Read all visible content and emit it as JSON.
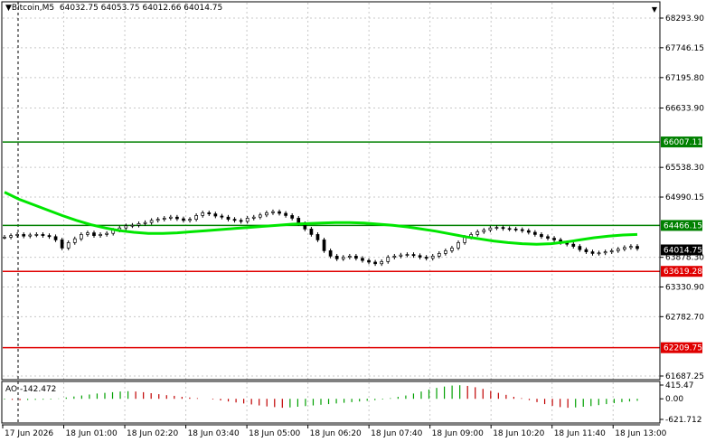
{
  "header": {
    "symbol_label": "▼Bitcoin,M5",
    "ohlc": "64032.75 64053.75 64012.66 64014.75",
    "scroll_icon": "triangle-down-icon"
  },
  "indicator": {
    "name": "AO -142.472"
  },
  "colors": {
    "bull": "#000000",
    "bear": "#000000",
    "ma": "#00e600",
    "resistance": "#008000",
    "support": "#e00000",
    "ao_up": "#00a000",
    "ao_down": "#c00000",
    "grid": "#c8c8c8"
  },
  "chart_data": {
    "type": "candlestick",
    "y_ticks": [
      "68293.90",
      "67746.15",
      "67195.80",
      "66633.90",
      "65538.30",
      "64990.15",
      "63878.30",
      "63330.90",
      "62782.70",
      "61687.25"
    ],
    "ylim": [
      61687.25,
      68293.9
    ],
    "current_price": "64014.75",
    "levels": [
      {
        "label": "66007.11",
        "value": 66007.11,
        "kind": "resistance"
      },
      {
        "label": "64466.15",
        "value": 64466.15,
        "kind": "resistance"
      },
      {
        "label": "63619.28",
        "value": 63619.28,
        "kind": "support"
      },
      {
        "label": "62209.75",
        "value": 62209.75,
        "kind": "support"
      }
    ],
    "x_ticks": [
      "17 Jun 2026",
      "18 Jun 01:00",
      "18 Jun 02:20",
      "18 Jun 03:40",
      "18 Jun 05:00",
      "18 Jun 06:20",
      "18 Jun 07:40",
      "18 Jun 09:00",
      "18 Jun 10:20",
      "18 Jun 11:40",
      "18 Jun 13:00"
    ],
    "closes": [
      64250,
      64280,
      64300,
      64270,
      64290,
      64300,
      64280,
      64260,
      64200,
      64050,
      64150,
      64220,
      64300,
      64330,
      64280,
      64300,
      64320,
      64380,
      64420,
      64460,
      64470,
      64500,
      64520,
      64560,
      64580,
      64600,
      64620,
      64590,
      64560,
      64580,
      64650,
      64700,
      64680,
      64640,
      64620,
      64580,
      64560,
      64540,
      64600,
      64620,
      64660,
      64700,
      64720,
      64690,
      64650,
      64600,
      64500,
      64400,
      64300,
      64200,
      64000,
      63900,
      63850,
      63880,
      63900,
      63860,
      63820,
      63790,
      63760,
      63800,
      63880,
      63900,
      63920,
      63930,
      63910,
      63880,
      63860,
      63900,
      63950,
      64000,
      64050,
      64150,
      64250,
      64300,
      64350,
      64380,
      64420,
      64430,
      64410,
      64400,
      64390,
      64370,
      64340,
      64300,
      64260,
      64230,
      64200,
      64150,
      64120,
      64080,
      64020,
      63980,
      63950,
      63960,
      63980,
      64000,
      64030,
      64060,
      64080,
      64040
    ],
    "ma": [
      65080,
      64950,
      64850,
      64750,
      64650,
      64560,
      64480,
      64420,
      64370,
      64340,
      64320,
      64320,
      64330,
      64350,
      64370,
      64390,
      64410,
      64430,
      64450,
      64470,
      64490,
      64500,
      64510,
      64520,
      64520,
      64510,
      64490,
      64470,
      64440,
      64400,
      64360,
      64310,
      64260,
      64220,
      64180,
      64150,
      64130,
      64120,
      64130,
      64160,
      64200,
      64240,
      64270,
      64290,
      64300
    ],
    "ao_range": [
      -621.712,
      415.47
    ],
    "ao_ticks": [
      "415.47",
      "0.00",
      "-621.712"
    ],
    "ao_values": [
      -20,
      -30,
      -40,
      -35,
      -30,
      -25,
      -20,
      10,
      40,
      70,
      100,
      130,
      160,
      180,
      200,
      220,
      230,
      220,
      200,
      170,
      140,
      110,
      90,
      60,
      40,
      20,
      0,
      -20,
      -50,
      -80,
      -110,
      -140,
      -170,
      -200,
      -230,
      -250,
      -270,
      -260,
      -240,
      -220,
      -200,
      -180,
      -160,
      -140,
      -120,
      -100,
      -80,
      -60,
      -40,
      -20,
      20,
      60,
      100,
      160,
      220,
      280,
      330,
      370,
      400,
      410,
      390,
      350,
      300,
      240,
      180,
      120,
      60,
      20,
      -40,
      -100,
      -160,
      -210,
      -250,
      -270,
      -260,
      -240,
      -220,
      -190,
      -160,
      -130,
      -100,
      -80,
      -60
    ]
  }
}
